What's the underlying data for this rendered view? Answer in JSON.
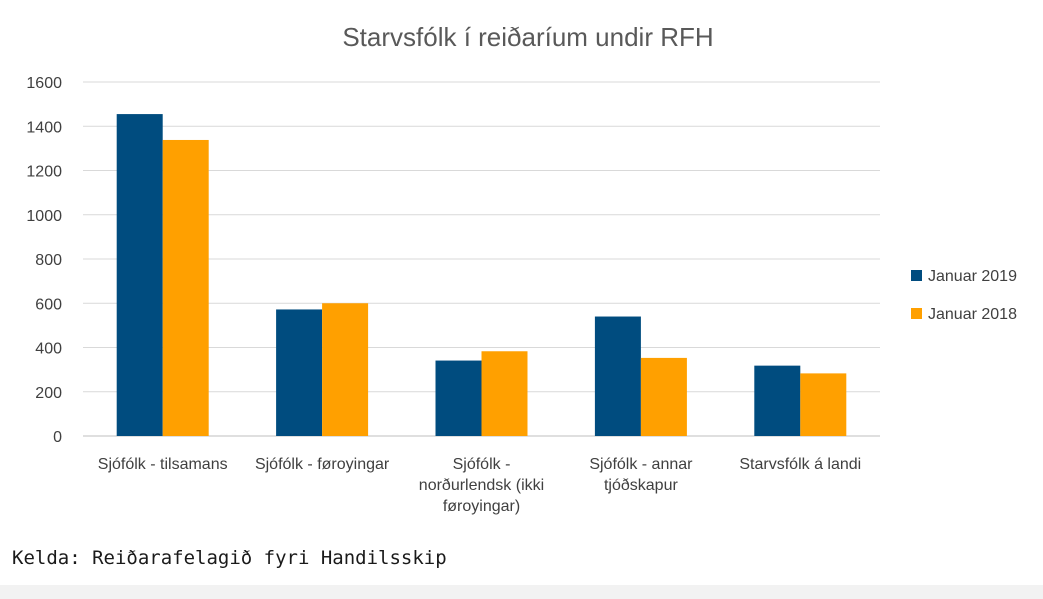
{
  "chart_data": {
    "type": "bar",
    "title": "Starvsfólk í reiðaríum undir RFH",
    "categories": [
      "Sjófólk - tilsamans",
      "Sjófólk - føroyingar",
      "Sjófólk - norðurlendsk (ikki føroyingar)",
      "Sjófólk - annar tjóðskapur",
      "Starvsfólk á landi"
    ],
    "category_lines": [
      [
        "Sjófólk - tilsamans"
      ],
      [
        "Sjófólk - føroyingar"
      ],
      [
        "Sjófólk -",
        "norðurlendsk (ikki",
        "føroyingar)"
      ],
      [
        "Sjófólk - annar",
        "tjóðskapur"
      ],
      [
        "Starvsfólk á landi"
      ]
    ],
    "series": [
      {
        "name": "Januar 2019",
        "color": "#004c7f",
        "values": [
          1455,
          572,
          341,
          540,
          318
        ]
      },
      {
        "name": "Januar 2018",
        "color": "#ffa000",
        "values": [
          1338,
          600,
          383,
          353,
          283
        ]
      }
    ],
    "ylim": [
      0,
      1600
    ],
    "yticks": [
      0,
      200,
      400,
      600,
      800,
      1000,
      1200,
      1400,
      1600
    ],
    "grid": true,
    "legend_position": "right",
    "xlabel": "",
    "ylabel": ""
  },
  "source_note": "Kelda: Reiðarafelagið fyri Handilsskip"
}
